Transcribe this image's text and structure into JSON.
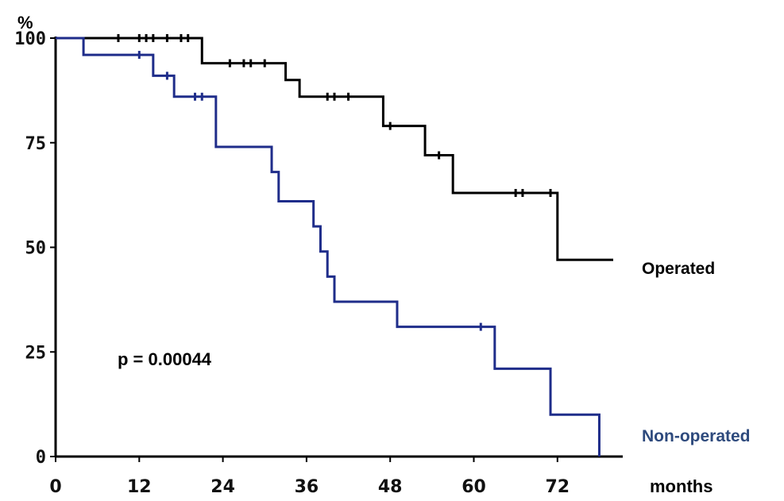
{
  "chart_data": {
    "type": "line",
    "subtype": "kaplan-meier step curves",
    "xlabel": "months",
    "ylabel": "%",
    "xlim": [
      0,
      80
    ],
    "ylim": [
      0,
      100
    ],
    "x_ticks": [
      "0",
      "12",
      "24",
      "36",
      "48",
      "60",
      "72"
    ],
    "y_ticks": [
      "0",
      "25",
      "50",
      "75",
      "100"
    ],
    "grid": false,
    "annotation": "p = 0.00044",
    "series": [
      {
        "name": "Operated",
        "color": "#000000",
        "steps": [
          [
            0,
            100
          ],
          [
            21,
            94
          ],
          [
            33,
            90
          ],
          [
            35,
            86
          ],
          [
            47,
            79
          ],
          [
            53,
            72
          ],
          [
            57,
            63
          ],
          [
            72,
            47
          ],
          [
            80,
            47
          ]
        ],
        "censored": [
          [
            9,
            100
          ],
          [
            12,
            100
          ],
          [
            13,
            100
          ],
          [
            14,
            100
          ],
          [
            16,
            100
          ],
          [
            18,
            100
          ],
          [
            19,
            100
          ],
          [
            25,
            94
          ],
          [
            27,
            94
          ],
          [
            28,
            94
          ],
          [
            30,
            94
          ],
          [
            39,
            86
          ],
          [
            40,
            86
          ],
          [
            42,
            86
          ],
          [
            48,
            79
          ],
          [
            55,
            72
          ],
          [
            66,
            63
          ],
          [
            67,
            63
          ],
          [
            71,
            63
          ]
        ]
      },
      {
        "name": "Non-operated",
        "color": "#1f2d8a",
        "steps": [
          [
            0,
            100
          ],
          [
            4,
            96
          ],
          [
            14,
            91
          ],
          [
            17,
            86
          ],
          [
            23,
            74
          ],
          [
            31,
            68
          ],
          [
            32,
            61
          ],
          [
            37,
            55
          ],
          [
            38,
            49
          ],
          [
            39,
            43
          ],
          [
            40,
            37
          ],
          [
            49,
            31
          ],
          [
            63,
            21
          ],
          [
            71,
            10
          ],
          [
            78,
            0
          ]
        ],
        "censored": [
          [
            12,
            96
          ],
          [
            16,
            91
          ],
          [
            20,
            86
          ],
          [
            21,
            86
          ],
          [
            61,
            31
          ]
        ]
      }
    ]
  }
}
